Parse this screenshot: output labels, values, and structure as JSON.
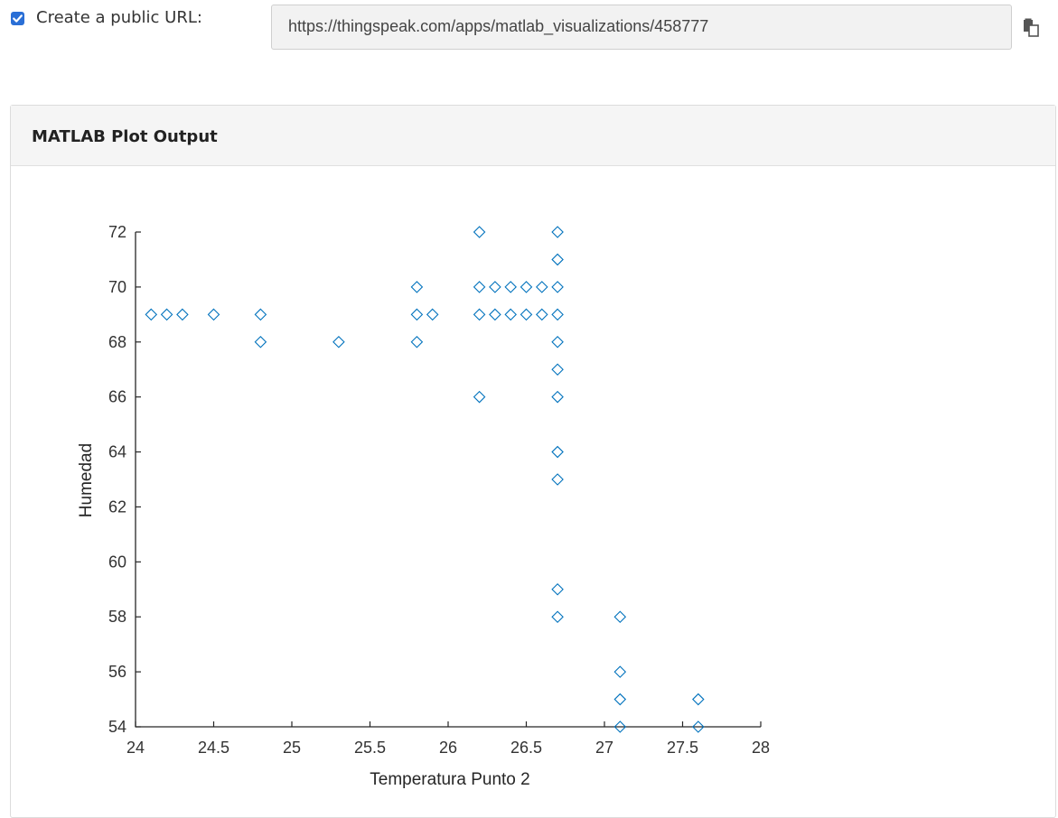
{
  "public_url": {
    "checked": true,
    "label": "Create a public URL:",
    "url": "https://thingspeak.com/apps/matlab_visualizations/458777",
    "copy_icon": "copy-icon"
  },
  "panel": {
    "title": "MATLAB Plot Output"
  },
  "chart_data": {
    "type": "scatter",
    "title": "",
    "xlabel": "Temperatura Punto 2",
    "ylabel": "Humedad",
    "xlim": [
      24,
      28
    ],
    "ylim": [
      54,
      72
    ],
    "xticks": [
      24,
      24.5,
      25,
      25.5,
      26,
      26.5,
      27,
      27.5,
      28
    ],
    "xtick_labels": [
      "24",
      "24.5",
      "25",
      "25.5",
      "26",
      "26.5",
      "27",
      "27.5",
      "28"
    ],
    "yticks": [
      54,
      56,
      58,
      60,
      62,
      64,
      66,
      68,
      70,
      72
    ],
    "ytick_labels": [
      "54",
      "56",
      "58",
      "60",
      "62",
      "64",
      "66",
      "68",
      "70",
      "72"
    ],
    "grid": false,
    "marker": "diamond",
    "color": "#0072bd",
    "points": [
      [
        24.1,
        69
      ],
      [
        24.2,
        69
      ],
      [
        24.3,
        69
      ],
      [
        24.5,
        69
      ],
      [
        24.8,
        69
      ],
      [
        24.8,
        68
      ],
      [
        25.3,
        68
      ],
      [
        25.8,
        70
      ],
      [
        25.8,
        69
      ],
      [
        25.9,
        69
      ],
      [
        25.8,
        68
      ],
      [
        26.2,
        72
      ],
      [
        26.2,
        70
      ],
      [
        26.3,
        70
      ],
      [
        26.4,
        70
      ],
      [
        26.5,
        70
      ],
      [
        26.6,
        70
      ],
      [
        26.2,
        69
      ],
      [
        26.3,
        69
      ],
      [
        26.4,
        69
      ],
      [
        26.5,
        69
      ],
      [
        26.6,
        69
      ],
      [
        26.2,
        66
      ],
      [
        26.7,
        72
      ],
      [
        26.7,
        71
      ],
      [
        26.7,
        70
      ],
      [
        26.7,
        69
      ],
      [
        26.7,
        68
      ],
      [
        26.7,
        67
      ],
      [
        26.7,
        66
      ],
      [
        26.7,
        64
      ],
      [
        26.7,
        63
      ],
      [
        26.7,
        59
      ],
      [
        26.7,
        58
      ],
      [
        27.1,
        58
      ],
      [
        27.1,
        56
      ],
      [
        27.1,
        55
      ],
      [
        27.1,
        54
      ],
      [
        27.6,
        55
      ],
      [
        27.6,
        54
      ]
    ]
  }
}
